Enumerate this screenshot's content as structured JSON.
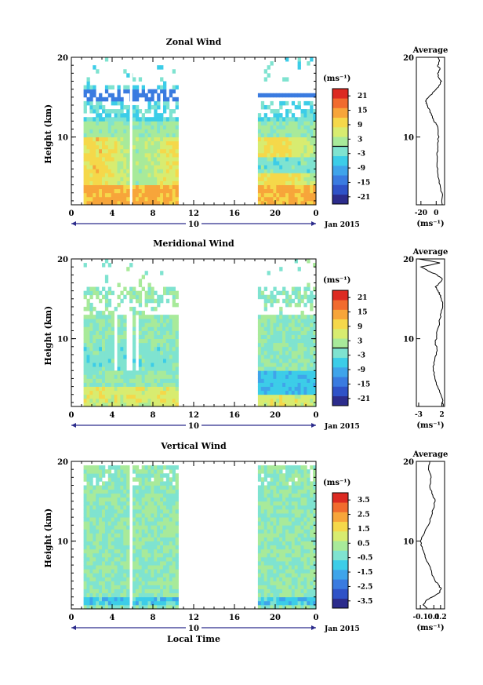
{
  "figure": {
    "time_axis_label": "Local Time",
    "date_label": "Jan 2015",
    "day_label": "10"
  },
  "colors": {
    "colormap": [
      "#2c2c8c",
      "#2f52c7",
      "#3a7be0",
      "#3fa4ea",
      "#3ccde8",
      "#7fe3d0",
      "#a8ea9a",
      "#d8ec70",
      "#f5d84a",
      "#f7a53a",
      "#f16b2e",
      "#dc2a22"
    ]
  },
  "chart_data": [
    {
      "type": "heatmap",
      "title": "Zonal Wind",
      "ylabel": "Height (km)",
      "xlim": [
        0,
        24
      ],
      "ylim": [
        1.5,
        20
      ],
      "xticks": [
        "0",
        "4",
        "8",
        "12",
        "16",
        "20",
        "0"
      ],
      "yticks": [
        "10",
        "20"
      ],
      "colorbar": {
        "unit": "(ms⁻¹)",
        "range": [
          -24,
          24
        ],
        "ticks": [
          "21",
          "15",
          "9",
          "3",
          "-3",
          "-9",
          "-15",
          "-21"
        ],
        "zero_line": true
      },
      "data_time_ranges": [
        [
          1.3,
          10.4
        ],
        [
          18.3,
          24
        ]
      ],
      "profile": {
        "title": "Average",
        "xlabel": "(ms⁻¹)",
        "xticks": [
          "-20",
          "0"
        ],
        "xlim": [
          -26,
          11
        ],
        "yticks": [
          "10",
          "20"
        ],
        "height_km": [
          1.5,
          2.5,
          3.5,
          4.5,
          5.5,
          6.5,
          7.5,
          8.5,
          9.5,
          10.5,
          11.5,
          12,
          12.5,
          13,
          13.5,
          14,
          14.5,
          15,
          15.5,
          16,
          16.5,
          17,
          17.5,
          18,
          18.5,
          19,
          19.5,
          20
        ],
        "value": [
          8,
          8,
          6,
          4,
          2,
          1,
          1.5,
          2,
          3,
          2.5,
          1,
          -3,
          -5,
          -7,
          -9,
          -12,
          -14,
          -10,
          -5,
          0,
          4,
          7,
          3,
          2,
          5,
          2,
          4,
          2
        ]
      }
    },
    {
      "type": "heatmap",
      "title": "Meridional Wind",
      "ylabel": "Height (km)",
      "xlim": [
        0,
        24
      ],
      "ylim": [
        1.5,
        20
      ],
      "xticks": [
        "0",
        "4",
        "8",
        "12",
        "16",
        "20",
        "0"
      ],
      "yticks": [
        "10",
        "20"
      ],
      "colorbar": {
        "unit": "(ms⁻¹)",
        "range": [
          -24,
          24
        ],
        "ticks": [
          "21",
          "15",
          "9",
          "3",
          "-3",
          "-9",
          "-15",
          "-21"
        ],
        "zero_line": true
      },
      "data_time_ranges": [
        [
          1.3,
          10.4
        ],
        [
          18.3,
          24
        ]
      ],
      "profile": {
        "title": "Average",
        "xlabel": "(ms⁻¹)",
        "xticks": [
          "-3",
          "2"
        ],
        "xlim": [
          -3.5,
          2.6
        ],
        "yticks": [
          "10",
          "20"
        ],
        "height_km": [
          1.5,
          2.5,
          3.5,
          4.5,
          5.5,
          6.5,
          7.5,
          8.5,
          9.5,
          10.5,
          11.5,
          12.5,
          13.5,
          14.5,
          15,
          15.5,
          16,
          16.5,
          17,
          17.5,
          18,
          18.5,
          19,
          19.5,
          20
        ],
        "value": [
          2.3,
          2.1,
          1.5,
          0.8,
          0.3,
          0.1,
          0.5,
          1.0,
          0.6,
          0.9,
          1.3,
          1.6,
          1.9,
          2.2,
          1.9,
          1.6,
          1.2,
          0.6,
          1.5,
          2.1,
          1.0,
          -1.0,
          -2.5,
          1.6,
          -3.0
        ]
      }
    },
    {
      "type": "heatmap",
      "title": "Vertical Wind",
      "ylabel": "Height (km)",
      "xlabel": "Local Time",
      "xlim": [
        0,
        24
      ],
      "ylim": [
        1.5,
        20
      ],
      "xticks": [
        "0",
        "4",
        "8",
        "12",
        "16",
        "20",
        "0"
      ],
      "yticks": [
        "10",
        "20"
      ],
      "colorbar": {
        "unit": "(ms⁻¹)",
        "range": [
          -4,
          4
        ],
        "ticks": [
          "3.5",
          "2.5",
          "1.5",
          "0.5",
          "-0.5",
          "-1.5",
          "-2.5",
          "-3.5"
        ],
        "zero_line": false
      },
      "data_time_ranges": [
        [
          1.3,
          5.8
        ],
        [
          5.9,
          10.4
        ],
        [
          18.3,
          24
        ]
      ],
      "profile": {
        "title": "Average",
        "xlabel": "(ms⁻¹)",
        "xticks": [
          "-0.1",
          "0.1",
          "0.2"
        ],
        "xlim": [
          -0.16,
          0.26
        ],
        "yticks": [
          "10",
          "20"
        ],
        "height_km": [
          1.5,
          2,
          2.5,
          3,
          3.5,
          4,
          4.5,
          5,
          6,
          7,
          8,
          9,
          10,
          11,
          12,
          13,
          14,
          15,
          16,
          17,
          18,
          19,
          20
        ],
        "value": [
          0.0,
          -0.06,
          -0.02,
          0.08,
          0.18,
          0.21,
          0.17,
          0.12,
          0.07,
          0.03,
          -0.03,
          -0.07,
          -0.1,
          -0.04,
          0.02,
          0.06,
          0.09,
          0.12,
          0.07,
          0.04,
          0.06,
          0.02,
          0.04
        ]
      }
    }
  ]
}
